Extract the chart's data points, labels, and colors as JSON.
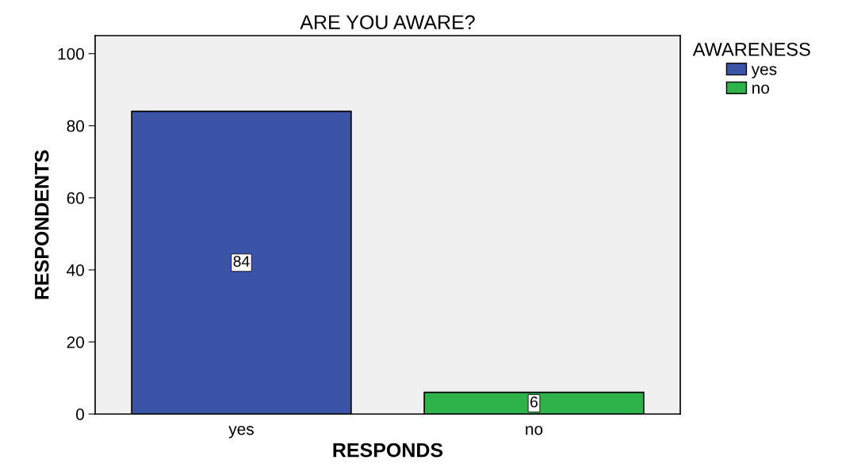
{
  "chart_data": {
    "type": "bar",
    "title": "ARE YOU AWARE?",
    "xlabel": "RESPONDS",
    "ylabel": "RESPONDENTS",
    "legend_title": "AWARENESS",
    "categories": [
      "yes",
      "no"
    ],
    "series": [
      {
        "name": "yes",
        "color": "#3b54a7",
        "values": [
          84,
          null
        ]
      },
      {
        "name": "no",
        "color": "#2db34a",
        "values": [
          null,
          6
        ]
      }
    ],
    "stacked": true,
    "ylim": [
      0,
      105
    ],
    "yticks": [
      0,
      20,
      40,
      60,
      80,
      100
    ],
    "grid": false,
    "legend": "top right",
    "data_labels": true
  }
}
